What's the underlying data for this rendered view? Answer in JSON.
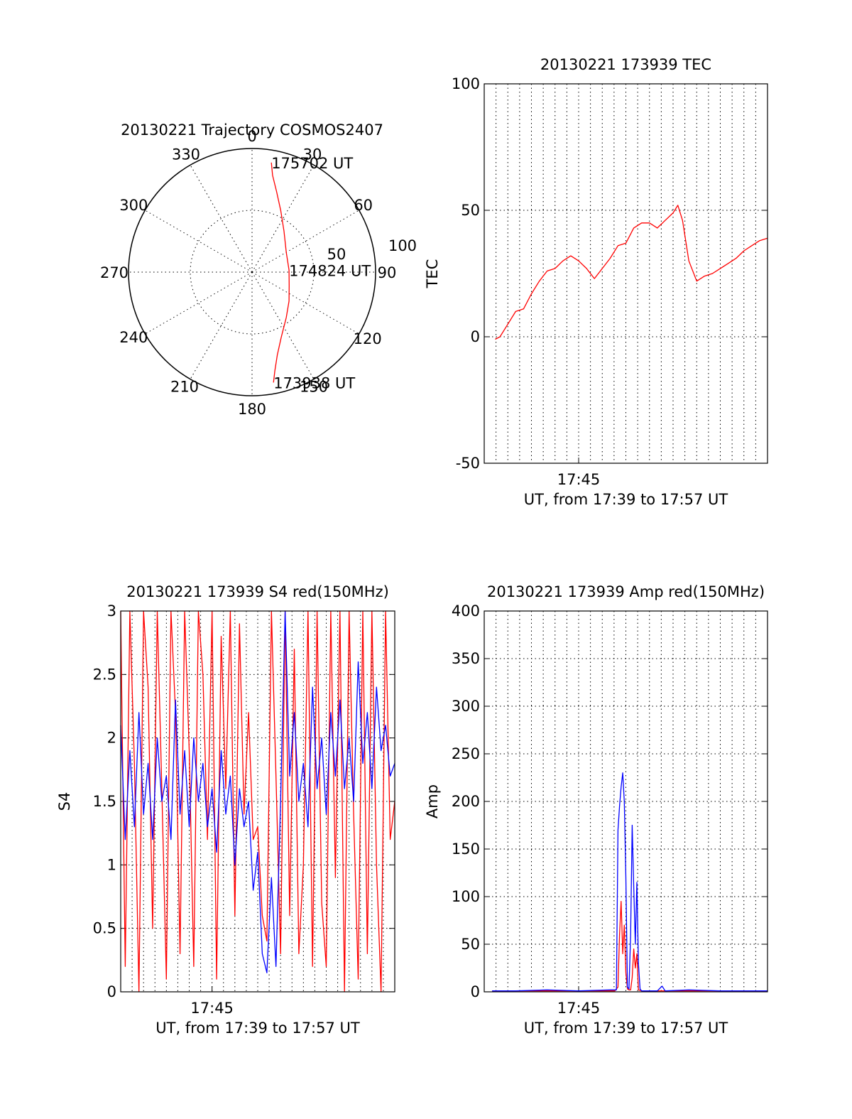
{
  "chart_data": [
    {
      "id": "trajectory",
      "type": "polar",
      "title": "20130221 Trajectory COSMOS2407",
      "satellite": "COSMOS2407",
      "azimuth_labels": [
        "0",
        "30",
        "60",
        "90",
        "120",
        "150",
        "180",
        "210",
        "240",
        "270",
        "300",
        "330"
      ],
      "radius_labels": [
        "50",
        "100"
      ],
      "rmax": 100,
      "grid": true,
      "series": [
        {
          "color": "#ff0000",
          "points_az_r": [
            [
              10,
              90
            ],
            [
              12,
              80
            ],
            [
              17,
              68
            ],
            [
              25,
              55
            ],
            [
              38,
              42
            ],
            [
              60,
              32
            ],
            [
              87,
              30
            ],
            [
              110,
              32
            ],
            [
              128,
              38
            ],
            [
              143,
              46
            ],
            [
              156,
              58
            ],
            [
              163,
              70
            ],
            [
              167,
              82
            ],
            [
              169,
              91
            ]
          ]
        }
      ],
      "annotations": [
        {
          "text": "175702 UT",
          "az": 10,
          "r": 90
        },
        {
          "text": "174824 UT",
          "az": 87,
          "r": 30
        },
        {
          "text": "173938 UT",
          "az": 169,
          "r": 91
        }
      ]
    },
    {
      "id": "tec",
      "type": "line",
      "title": "20130221 173939 TEC",
      "xlabel": "UT, from 17:39 to 17:57 UT",
      "ylabel": "TEC",
      "xlim": [
        0,
        18
      ],
      "ylim": [
        -50,
        100
      ],
      "yticks": [
        -50,
        0,
        50,
        100
      ],
      "xtick_labels": [
        {
          "t": 6,
          "label": "17:45"
        }
      ],
      "grid": true,
      "series": [
        {
          "color": "#ff0000",
          "x": [
            0.7,
            1.0,
            1.5,
            2.0,
            2.5,
            3.0,
            3.5,
            4.0,
            4.5,
            5.0,
            5.5,
            6.0,
            6.5,
            7.0,
            7.5,
            8.0,
            8.5,
            9.0,
            9.5,
            10.0,
            10.5,
            11.0,
            11.5,
            12.0,
            12.3,
            12.6,
            13.0,
            13.5,
            14.0,
            14.5,
            15.0,
            15.5,
            16.0,
            16.5,
            17.0,
            17.5,
            18.0
          ],
          "y": [
            -1,
            0,
            5,
            10,
            11,
            17,
            22,
            26,
            27,
            30,
            32,
            30,
            27,
            23,
            27,
            31,
            36,
            37,
            43,
            45,
            45,
            43,
            46,
            49,
            52,
            46,
            30,
            22,
            24,
            25,
            27,
            29,
            31,
            34,
            36,
            38,
            39
          ]
        }
      ]
    },
    {
      "id": "s4",
      "type": "line",
      "title": "20130221 173939 S4 red(150MHz)",
      "xlabel": "UT, from 17:39 to 17:57 UT",
      "ylabel": "S4",
      "xlim": [
        0,
        18
      ],
      "ylim": [
        0,
        3
      ],
      "yticks": [
        0,
        0.5,
        1,
        1.5,
        2,
        2.5,
        3
      ],
      "ytick_labels": [
        "0",
        "0.5",
        "1",
        "1.5",
        "2",
        "2.5",
        "3"
      ],
      "xtick_labels": [
        {
          "t": 6,
          "label": "17:45"
        }
      ],
      "grid": true,
      "series": [
        {
          "color": "#ff0000",
          "x": [
            0,
            0.3,
            0.6,
            0.9,
            1.2,
            1.5,
            1.8,
            2.1,
            2.4,
            2.7,
            3.0,
            3.3,
            3.6,
            3.9,
            4.2,
            4.5,
            4.8,
            5.1,
            5.4,
            5.7,
            6.0,
            6.3,
            6.6,
            6.9,
            7.2,
            7.5,
            7.8,
            8.1,
            8.4,
            8.7,
            9.0,
            9.3,
            9.6,
            9.9,
            10.2,
            10.5,
            10.8,
            11.1,
            11.4,
            11.7,
            12.0,
            12.3,
            12.6,
            12.9,
            13.2,
            13.5,
            13.8,
            14.1,
            14.4,
            14.7,
            15.0,
            15.3,
            15.6,
            15.9,
            16.2,
            16.5,
            16.8,
            17.1,
            17.4,
            17.7,
            18.0
          ],
          "y": [
            3,
            0.2,
            3,
            1.8,
            0,
            3,
            2.4,
            0.5,
            3,
            1.6,
            0.1,
            3,
            2.2,
            0.3,
            3,
            1.9,
            0.2,
            3,
            2.5,
            1.2,
            3,
            0.1,
            2.8,
            1.6,
            3,
            0.6,
            2.9,
            1.4,
            2.2,
            1.2,
            1.3,
            0.6,
            0.4,
            3,
            1.7,
            0.3,
            3,
            0.6,
            2.7,
            0.3,
            1.0,
            3,
            0.2,
            3,
            0.7,
            0.2,
            3,
            0.9,
            3,
            0.0,
            3,
            1.4,
            0.1,
            3,
            0.3,
            3,
            1.0,
            0.0,
            3,
            1.2,
            1.5
          ]
        },
        {
          "color": "#0000ff",
          "x": [
            0,
            0.3,
            0.6,
            0.9,
            1.2,
            1.5,
            1.8,
            2.1,
            2.4,
            2.7,
            3.0,
            3.3,
            3.6,
            3.9,
            4.2,
            4.5,
            4.8,
            5.1,
            5.4,
            5.7,
            6.0,
            6.3,
            6.6,
            6.9,
            7.2,
            7.5,
            7.8,
            8.1,
            8.4,
            8.7,
            9.0,
            9.3,
            9.6,
            9.9,
            10.2,
            10.5,
            10.8,
            11.1,
            11.4,
            11.7,
            12.0,
            12.3,
            12.6,
            12.9,
            13.2,
            13.5,
            13.8,
            14.1,
            14.4,
            14.7,
            15.0,
            15.3,
            15.6,
            15.9,
            16.2,
            16.5,
            16.8,
            17.1,
            17.4,
            17.7,
            18.0
          ],
          "y": [
            2.1,
            1.2,
            1.9,
            1.3,
            2.2,
            1.4,
            1.8,
            1.2,
            2.0,
            1.5,
            1.7,
            1.2,
            2.3,
            1.4,
            1.9,
            1.3,
            2.0,
            1.5,
            1.8,
            1.3,
            1.6,
            1.1,
            1.9,
            1.4,
            1.7,
            1.0,
            1.6,
            1.3,
            1.5,
            0.8,
            1.1,
            0.3,
            0.15,
            0.9,
            0.2,
            1.5,
            3,
            1.7,
            2.2,
            1.5,
            1.8,
            1.3,
            2.4,
            1.6,
            2.0,
            1.4,
            2.2,
            1.7,
            2.3,
            1.6,
            2.0,
            1.5,
            2.6,
            1.8,
            2.2,
            1.6,
            2.4,
            1.9,
            2.1,
            1.7,
            1.8
          ]
        }
      ]
    },
    {
      "id": "amp",
      "type": "line",
      "title": "20130221 173939 Amp red(150MHz)",
      "xlabel": "UT, from 17:39 to 17:57 UT",
      "ylabel": "Amp",
      "xlim": [
        0,
        18
      ],
      "ylim": [
        0,
        400
      ],
      "yticks": [
        0,
        50,
        100,
        150,
        200,
        250,
        300,
        350,
        400
      ],
      "xtick_labels": [
        {
          "t": 6,
          "label": "17:45"
        }
      ],
      "grid": true,
      "series": [
        {
          "color": "#ff0000",
          "x": [
            0.5,
            8.3,
            8.5,
            8.6,
            8.7,
            8.8,
            8.9,
            9.0,
            9.1,
            9.2,
            9.3,
            9.4,
            9.5,
            9.6,
            9.7,
            9.8,
            10.0,
            18.0
          ],
          "y": [
            1,
            1,
            5,
            60,
            95,
            40,
            70,
            20,
            3,
            2,
            2,
            15,
            45,
            25,
            40,
            2,
            1,
            1
          ]
        },
        {
          "color": "#0000ff",
          "x": [
            0.5,
            2.0,
            4.0,
            6.0,
            8.0,
            8.4,
            8.5,
            8.6,
            8.7,
            8.8,
            8.9,
            9.0,
            9.1,
            9.2,
            9.3,
            9.4,
            9.5,
            9.6,
            9.7,
            9.8,
            9.9,
            10.0,
            11.0,
            11.3,
            11.5,
            13.0,
            15.0,
            18.0
          ],
          "y": [
            1,
            1,
            2,
            1,
            2,
            2,
            170,
            195,
            215,
            230,
            200,
            120,
            5,
            3,
            60,
            175,
            110,
            50,
            115,
            30,
            3,
            1,
            1,
            6,
            1,
            2,
            1,
            1
          ]
        }
      ]
    }
  ]
}
